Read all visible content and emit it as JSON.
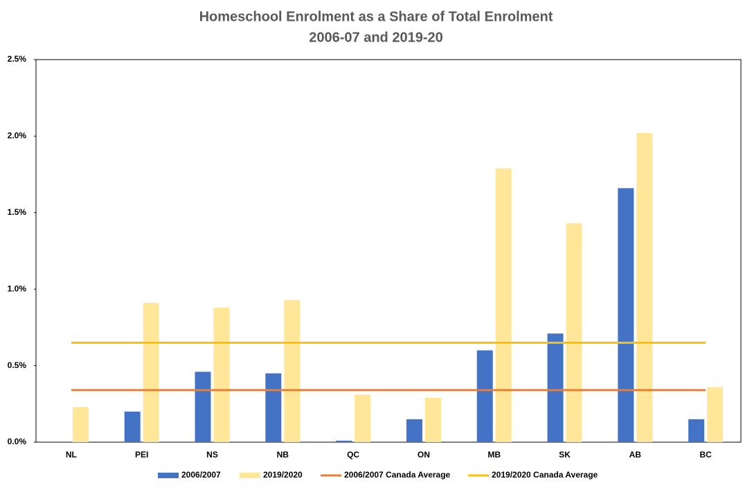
{
  "chart_data": {
    "type": "bar",
    "title": [
      "Homeschool Enrolment as a Share of Total Enrolment",
      "2006-07 and 2019-20"
    ],
    "categories": [
      "NL",
      "PEI",
      "NS",
      "NB",
      "QC",
      "ON",
      "MB",
      "SK",
      "AB",
      "BC"
    ],
    "series": [
      {
        "name": "2006/2007",
        "type": "bar",
        "color": "#4472c4",
        "values": [
          null,
          0.2,
          0.46,
          0.45,
          0.01,
          0.15,
          0.6,
          0.71,
          1.66,
          0.15
        ]
      },
      {
        "name": "2019/2020",
        "type": "bar",
        "color": "#ffe699",
        "values": [
          0.23,
          0.91,
          0.88,
          0.93,
          0.31,
          0.29,
          1.79,
          1.43,
          2.02,
          0.36
        ]
      },
      {
        "name": "2006/2007 Canada Average",
        "type": "line",
        "color": "#ed7d31",
        "values": [
          0.34,
          0.34,
          0.34,
          0.34,
          0.34,
          0.34,
          0.34,
          0.34,
          0.34,
          0.34
        ]
      },
      {
        "name": "2019/2020 Canada Average",
        "type": "line",
        "color": "#ffc000",
        "values": [
          0.65,
          0.65,
          0.65,
          0.65,
          0.65,
          0.65,
          0.65,
          0.65,
          0.65,
          0.65
        ]
      }
    ],
    "ylim": [
      0,
      2.5
    ],
    "yticks": [
      {
        "value": 0,
        "label": "0.0%"
      },
      {
        "value": 0.5,
        "label": "0.5%"
      },
      {
        "value": 1,
        "label": "1.0%"
      },
      {
        "value": 1.5,
        "label": "1.5%"
      },
      {
        "value": 2,
        "label": "2.0%"
      },
      {
        "value": 2.5,
        "label": "2.5%"
      }
    ],
    "legend": "bottom"
  }
}
